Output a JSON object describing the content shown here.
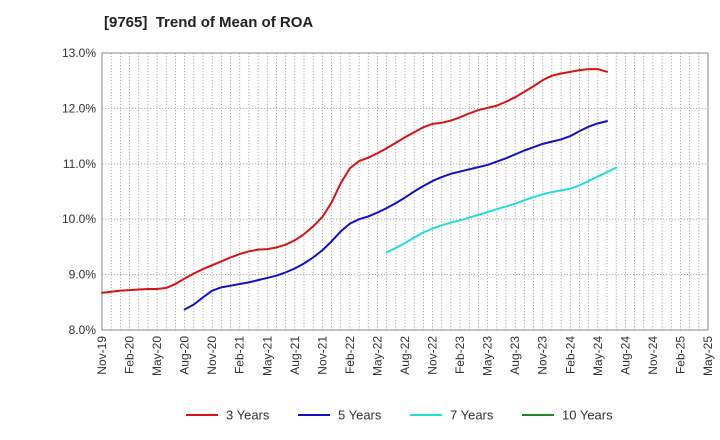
{
  "chart_data": {
    "type": "line",
    "title": "[9765]  Trend of Mean of ROA",
    "xlabel": "",
    "ylabel": "",
    "x_ticks": [
      "Nov-19",
      "Feb-20",
      "May-20",
      "Aug-20",
      "Nov-20",
      "Feb-21",
      "May-21",
      "Aug-21",
      "Nov-21",
      "Feb-22",
      "May-22",
      "Aug-22",
      "Nov-22",
      "Feb-23",
      "May-23",
      "Aug-23",
      "Nov-23",
      "Feb-24",
      "May-24",
      "Aug-24",
      "Nov-24",
      "Feb-25",
      "May-25"
    ],
    "y_ticks": [
      "8.0%",
      "9.0%",
      "10.0%",
      "11.0%",
      "12.0%",
      "13.0%"
    ],
    "ylim": [
      8.0,
      13.0
    ],
    "grid": true,
    "legend_position": "bottom",
    "series": [
      {
        "name": "3 Years",
        "color": "#dd1111",
        "points": [
          [
            "Nov-19",
            8.67
          ],
          [
            "Dec-19",
            8.69
          ],
          [
            "Jan-20",
            8.71
          ],
          [
            "Feb-20",
            8.72
          ],
          [
            "Mar-20",
            8.73
          ],
          [
            "Apr-20",
            8.74
          ],
          [
            "May-20",
            8.74
          ],
          [
            "Jun-20",
            8.76
          ],
          [
            "Jul-20",
            8.83
          ],
          [
            "Aug-20",
            8.93
          ],
          [
            "Sep-20",
            9.02
          ],
          [
            "Oct-20",
            9.1
          ],
          [
            "Nov-20",
            9.17
          ],
          [
            "Dec-20",
            9.24
          ],
          [
            "Jan-21",
            9.31
          ],
          [
            "Feb-21",
            9.37
          ],
          [
            "Mar-21",
            9.42
          ],
          [
            "Apr-21",
            9.45
          ],
          [
            "May-21",
            9.46
          ],
          [
            "Jun-21",
            9.49
          ],
          [
            "Jul-21",
            9.54
          ],
          [
            "Aug-21",
            9.62
          ],
          [
            "Sep-21",
            9.73
          ],
          [
            "Oct-21",
            9.87
          ],
          [
            "Nov-21",
            10.04
          ],
          [
            "Dec-21",
            10.3
          ],
          [
            "Jan-22",
            10.65
          ],
          [
            "Feb-22",
            10.92
          ],
          [
            "Mar-22",
            11.05
          ],
          [
            "Apr-22",
            11.11
          ],
          [
            "May-22",
            11.19
          ],
          [
            "Jun-22",
            11.28
          ],
          [
            "Jul-22",
            11.38
          ],
          [
            "Aug-22",
            11.48
          ],
          [
            "Sep-22",
            11.57
          ],
          [
            "Oct-22",
            11.66
          ],
          [
            "Nov-22",
            11.72
          ],
          [
            "Dec-22",
            11.74
          ],
          [
            "Jan-23",
            11.78
          ],
          [
            "Feb-23",
            11.84
          ],
          [
            "Mar-23",
            11.91
          ],
          [
            "Apr-23",
            11.97
          ],
          [
            "May-23",
            12.01
          ],
          [
            "Jun-23",
            12.05
          ],
          [
            "Jul-23",
            12.12
          ],
          [
            "Aug-23",
            12.2
          ],
          [
            "Sep-23",
            12.3
          ],
          [
            "Oct-23",
            12.4
          ],
          [
            "Nov-23",
            12.51
          ],
          [
            "Dec-23",
            12.59
          ],
          [
            "Jan-24",
            12.63
          ],
          [
            "Feb-24",
            12.66
          ],
          [
            "Mar-24",
            12.69
          ],
          [
            "Apr-24",
            12.71
          ],
          [
            "May-24",
            12.71
          ],
          [
            "Jun-24",
            12.66
          ]
        ]
      },
      {
        "name": "5 Years",
        "color": "#1111cc",
        "points": [
          [
            "Aug-20",
            8.37
          ],
          [
            "Sep-20",
            8.46
          ],
          [
            "Oct-20",
            8.59
          ],
          [
            "Nov-20",
            8.71
          ],
          [
            "Dec-20",
            8.77
          ],
          [
            "Jan-21",
            8.8
          ],
          [
            "Feb-21",
            8.83
          ],
          [
            "Mar-21",
            8.86
          ],
          [
            "Apr-21",
            8.9
          ],
          [
            "May-21",
            8.94
          ],
          [
            "Jun-21",
            8.98
          ],
          [
            "Jul-21",
            9.04
          ],
          [
            "Aug-21",
            9.11
          ],
          [
            "Sep-21",
            9.2
          ],
          [
            "Oct-21",
            9.31
          ],
          [
            "Nov-21",
            9.44
          ],
          [
            "Dec-21",
            9.6
          ],
          [
            "Jan-22",
            9.78
          ],
          [
            "Feb-22",
            9.92
          ],
          [
            "Mar-22",
            10.0
          ],
          [
            "Apr-22",
            10.05
          ],
          [
            "May-22",
            10.12
          ],
          [
            "Jun-22",
            10.2
          ],
          [
            "Jul-22",
            10.29
          ],
          [
            "Aug-22",
            10.39
          ],
          [
            "Sep-22",
            10.5
          ],
          [
            "Oct-22",
            10.6
          ],
          [
            "Nov-22",
            10.69
          ],
          [
            "Dec-22",
            10.76
          ],
          [
            "Jan-23",
            10.82
          ],
          [
            "Feb-23",
            10.86
          ],
          [
            "Mar-23",
            10.9
          ],
          [
            "Apr-23",
            10.94
          ],
          [
            "May-23",
            10.98
          ],
          [
            "Jun-23",
            11.04
          ],
          [
            "Jul-23",
            11.1
          ],
          [
            "Aug-23",
            11.17
          ],
          [
            "Sep-23",
            11.24
          ],
          [
            "Oct-23",
            11.3
          ],
          [
            "Nov-23",
            11.36
          ],
          [
            "Dec-23",
            11.4
          ],
          [
            "Jan-24",
            11.44
          ],
          [
            "Feb-24",
            11.5
          ],
          [
            "Mar-24",
            11.59
          ],
          [
            "Apr-24",
            11.67
          ],
          [
            "May-24",
            11.73
          ],
          [
            "Jun-24",
            11.77
          ]
        ]
      },
      {
        "name": "7 Years",
        "color": "#22dddd",
        "points": [
          [
            "Jun-22",
            9.4
          ],
          [
            "Jul-22",
            9.48
          ],
          [
            "Aug-22",
            9.57
          ],
          [
            "Sep-22",
            9.67
          ],
          [
            "Oct-22",
            9.76
          ],
          [
            "Nov-22",
            9.83
          ],
          [
            "Dec-22",
            9.89
          ],
          [
            "Jan-23",
            9.94
          ],
          [
            "Feb-23",
            9.98
          ],
          [
            "Mar-23",
            10.03
          ],
          [
            "Apr-23",
            10.08
          ],
          [
            "May-23",
            10.13
          ],
          [
            "Jun-23",
            10.18
          ],
          [
            "Jul-23",
            10.23
          ],
          [
            "Aug-23",
            10.28
          ],
          [
            "Sep-23",
            10.34
          ],
          [
            "Oct-23",
            10.4
          ],
          [
            "Nov-23",
            10.45
          ],
          [
            "Dec-23",
            10.49
          ],
          [
            "Jan-24",
            10.52
          ],
          [
            "Feb-24",
            10.55
          ],
          [
            "Mar-24",
            10.61
          ],
          [
            "Apr-24",
            10.69
          ],
          [
            "May-24",
            10.77
          ],
          [
            "Jun-24",
            10.85
          ],
          [
            "Jul-24",
            10.93
          ]
        ]
      },
      {
        "name": "10 Years",
        "color": "#228822",
        "points": []
      }
    ]
  }
}
